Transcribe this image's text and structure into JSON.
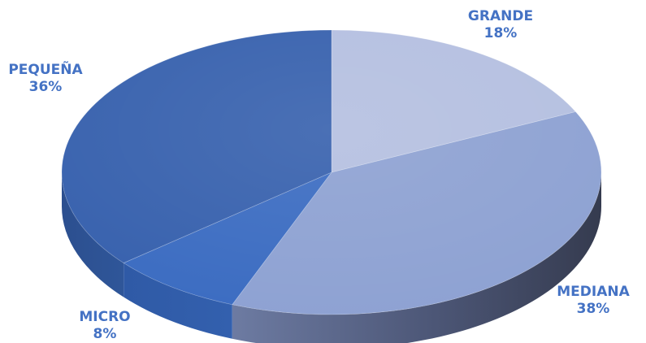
{
  "chart_data": {
    "type": "pie",
    "style": "3d",
    "slices": [
      {
        "label": "GRANDE",
        "value": 18,
        "display": "18%",
        "color": "#b4bfe0"
      },
      {
        "label": "MEDIANA",
        "value": 38,
        "display": "38%",
        "color": "#8da1d2"
      },
      {
        "label": "MICRO",
        "value": 8,
        "display": "8%",
        "color": "#3a6bc1"
      },
      {
        "label": "PEQUEÑA",
        "value": 36,
        "display": "36%",
        "color": "#3660ad"
      }
    ],
    "label_color": "#4472c4",
    "start_angle_deg": 0,
    "direction": "clockwise"
  }
}
